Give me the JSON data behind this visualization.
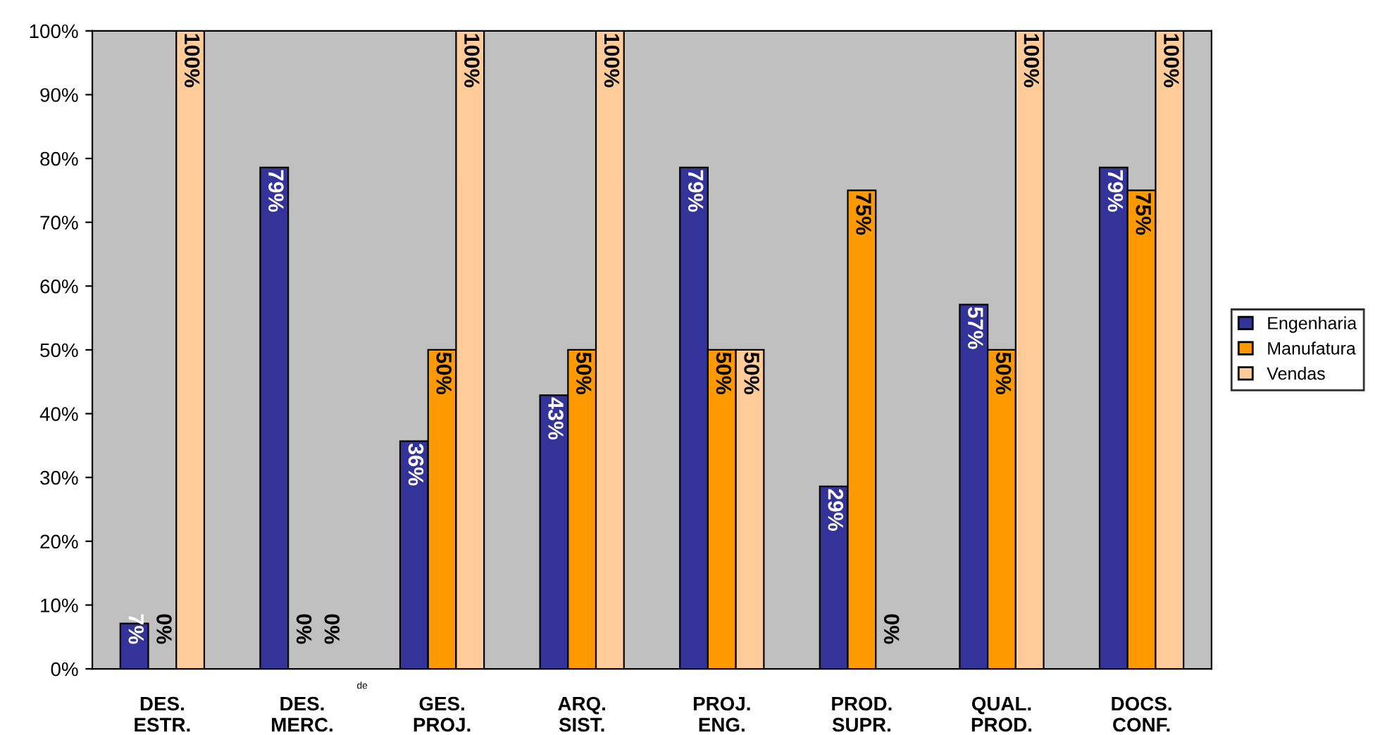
{
  "chart_data": {
    "type": "bar",
    "categories": [
      "DES.\nESTR.",
      "DES.\nMERC.",
      "GES.\nPROJ.",
      "ARQ.\nSIST.",
      "PROJ.\nENG.",
      "PROD.\nSUPR.",
      "QUAL.\nPROD.",
      "DOCS.\nCONF."
    ],
    "series": [
      {
        "name": "Engenharia",
        "color": "#333399",
        "values": [
          7.1,
          78.6,
          35.7,
          42.9,
          78.6,
          28.6,
          57.1,
          78.6
        ],
        "value_labels": [
          "7%",
          "79%",
          "36%",
          "43%",
          "79%",
          "29%",
          "57%",
          "79%"
        ]
      },
      {
        "name": "Manufatura",
        "color": "#ff9900",
        "values": [
          0,
          0,
          50,
          50,
          50,
          75,
          50,
          75
        ],
        "value_labels": [
          "0%",
          "0%",
          "50%",
          "50%",
          "50%",
          "75%",
          "50%",
          "75%"
        ]
      },
      {
        "name": "Vendas",
        "color": "#ffcc99",
        "values": [
          100,
          0,
          100,
          100,
          50,
          0,
          100,
          100
        ],
        "value_labels": [
          "100%",
          "0%",
          "100%",
          "100%",
          "50%",
          "0%",
          "100%",
          "100%"
        ]
      }
    ],
    "ylim": [
      0,
      100
    ],
    "yticks": [
      {
        "value": 0,
        "label": "0%"
      },
      {
        "value": 10,
        "label": "10%"
      },
      {
        "value": 20,
        "label": "20%"
      },
      {
        "value": 30,
        "label": "30%"
      },
      {
        "value": 40,
        "label": "40%"
      },
      {
        "value": 50,
        "label": "50%"
      },
      {
        "value": 60,
        "label": "60%"
      },
      {
        "value": 70,
        "label": "70%"
      },
      {
        "value": 80,
        "label": "80%"
      },
      {
        "value": 90,
        "label": "90%"
      },
      {
        "value": 100,
        "label": "100%"
      }
    ],
    "grid": false,
    "legend": "right",
    "annotations": [
      "de"
    ]
  }
}
